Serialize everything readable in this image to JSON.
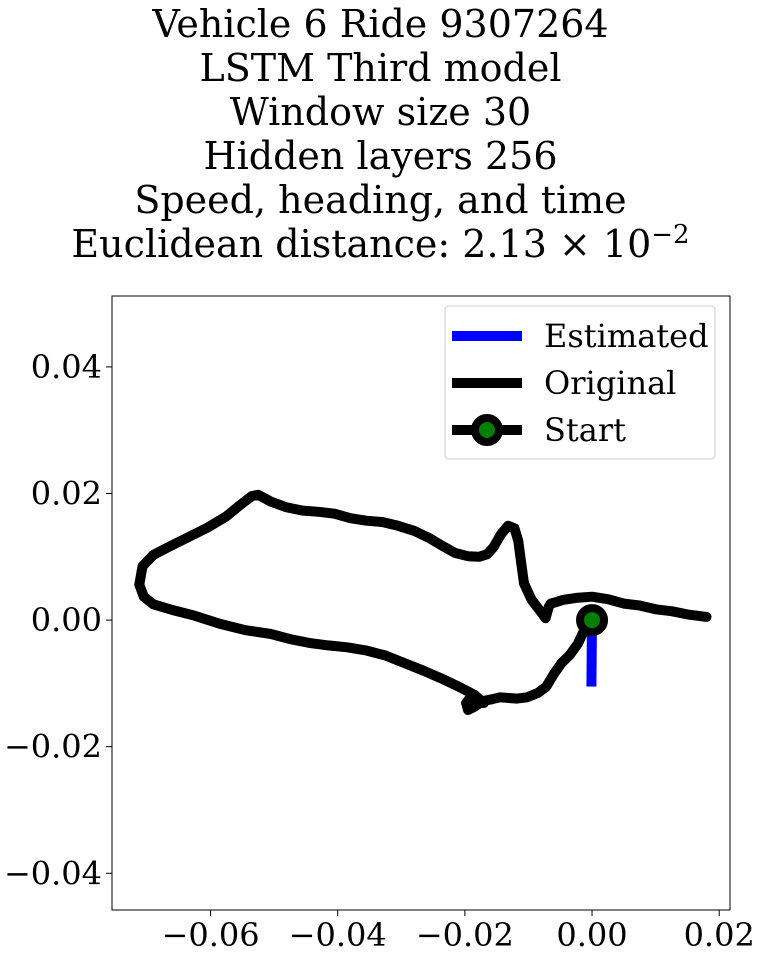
{
  "chart_data": {
    "type": "line",
    "title_lines": [
      "Vehicle 6 Ride 9307264",
      "LSTM Third model",
      "Window size 30",
      "Hidden layers 256",
      "Speed, heading, and time"
    ],
    "title_distance_label": "Euclidean distance: ",
    "title_distance_mantissa": "2.13 × 10",
    "title_distance_exponent": "−2",
    "xlabel": "",
    "ylabel": "",
    "xlim": [
      -0.0755,
      0.0217
    ],
    "ylim": [
      -0.0458,
      0.0512
    ],
    "xticks": [
      -0.06,
      -0.04,
      -0.02,
      0.0,
      0.02
    ],
    "xtick_labels": [
      "−0.06",
      "−0.04",
      "−0.02",
      "0.00",
      "0.02"
    ],
    "yticks": [
      0.04,
      0.02,
      0.0,
      -0.02,
      -0.04
    ],
    "ytick_labels": [
      "0.04",
      "0.02",
      "0.00",
      "−0.02",
      "−0.04"
    ],
    "grid": false,
    "legend_position": "top-right",
    "series": [
      {
        "name": "Estimated",
        "color": "#0000ff",
        "x": [
          0.0,
          -0.0001
        ],
        "y": [
          0.0,
          -0.0105
        ]
      },
      {
        "name": "Original",
        "color": "#000000",
        "x": [
          0.0,
          -0.0012,
          -0.0022,
          -0.0035,
          -0.0048,
          -0.006,
          -0.0072,
          -0.0085,
          -0.0102,
          -0.0118,
          -0.0133,
          -0.0145,
          -0.0157,
          -0.0172,
          -0.0185,
          -0.0195,
          -0.0198,
          -0.0192,
          -0.0181,
          -0.017,
          -0.0185,
          -0.0208,
          -0.0235,
          -0.0265,
          -0.0295,
          -0.0325,
          -0.0355,
          -0.0385,
          -0.0415,
          -0.0445,
          -0.0475,
          -0.0505,
          -0.0545,
          -0.0585,
          -0.0625,
          -0.066,
          -0.069,
          -0.0705,
          -0.0712,
          -0.0707,
          -0.069,
          -0.0665,
          -0.0635,
          -0.0605,
          -0.0575,
          -0.0552,
          -0.0535,
          -0.0525,
          -0.0505,
          -0.048,
          -0.0455,
          -0.043,
          -0.0405,
          -0.038,
          -0.0355,
          -0.033,
          -0.0305,
          -0.028,
          -0.0255,
          -0.0235,
          -0.0215,
          -0.0195,
          -0.0178,
          -0.0165,
          -0.0155,
          -0.0143,
          -0.0132,
          -0.0122,
          -0.0116,
          -0.0112,
          -0.0107,
          -0.0095,
          -0.0082,
          -0.0073,
          -0.0068,
          -0.0065,
          -0.0058,
          -0.0045,
          -0.0025,
          0.0,
          0.0025,
          0.005,
          0.0075,
          0.01,
          0.0125,
          0.015,
          0.018
        ],
        "y": [
          0.0,
          -0.0015,
          -0.0037,
          -0.0055,
          -0.0068,
          -0.0085,
          -0.0105,
          -0.0115,
          -0.0122,
          -0.0124,
          -0.0123,
          -0.0122,
          -0.0125,
          -0.0128,
          -0.0137,
          -0.0142,
          -0.0131,
          -0.0123,
          -0.0124,
          -0.0131,
          -0.0118,
          -0.0106,
          -0.0093,
          -0.008,
          -0.0068,
          -0.0056,
          -0.0048,
          -0.0043,
          -0.004,
          -0.0036,
          -0.003,
          -0.0022,
          -0.0016,
          -0.0006,
          0.0007,
          0.0016,
          0.0025,
          0.0037,
          0.0056,
          0.0085,
          0.0103,
          0.0116,
          0.0131,
          0.0146,
          0.0164,
          0.0183,
          0.0196,
          0.0198,
          0.0187,
          0.0178,
          0.0173,
          0.0171,
          0.0168,
          0.0161,
          0.0157,
          0.0155,
          0.0149,
          0.0141,
          0.0129,
          0.0117,
          0.0106,
          0.0101,
          0.01,
          0.0104,
          0.0115,
          0.0136,
          0.0149,
          0.0145,
          0.0125,
          0.0095,
          0.0058,
          0.0032,
          0.0015,
          0.0003,
          0.0021,
          0.0026,
          0.0028,
          0.0032,
          0.0035,
          0.0037,
          0.0033,
          0.0026,
          0.0023,
          0.0017,
          0.0014,
          0.0009,
          0.0005
        ]
      },
      {
        "name": "Start",
        "color": "#000000",
        "marker_face": "#008000",
        "x": [
          0.0
        ],
        "y": [
          0.0
        ]
      }
    ]
  }
}
